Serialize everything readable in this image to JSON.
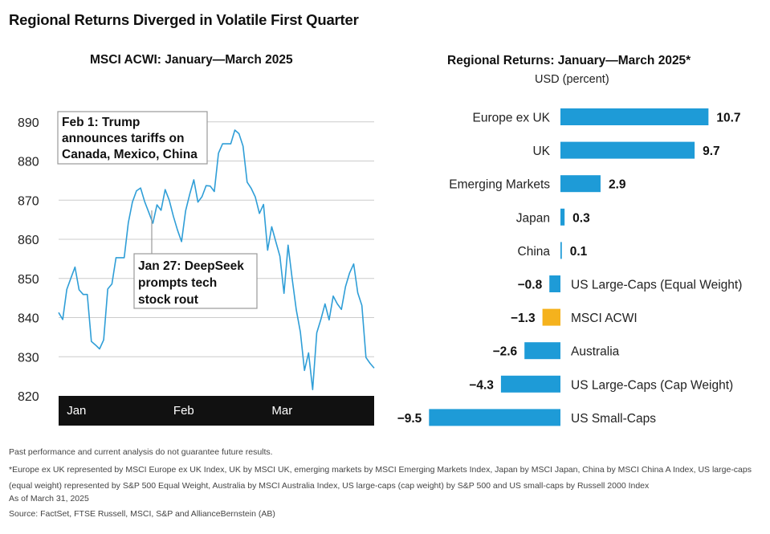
{
  "header": {
    "title": "Regional Returns Diverged in Volatile First Quarter",
    "left_subtitle": "MSCI ACWI: January—March 2025",
    "right_subtitle": "Regional Returns: January—March 2025*",
    "right_units": "USD (percent)"
  },
  "colors": {
    "line": "#2f9ed7",
    "bar": "#1e9bd7",
    "highlight_bar": "#f5b21d",
    "axis_band": "#111111",
    "grid": "#cccccc"
  },
  "chart_data": [
    {
      "type": "line",
      "title": "MSCI ACWI: January—March 2025",
      "yticks": [
        820,
        830,
        840,
        850,
        860,
        870,
        880,
        890
      ],
      "ylim": [
        820,
        892
      ],
      "xlim": [
        0,
        77
      ],
      "x_tick_labels": [
        {
          "label": "Jan",
          "x": 2
        },
        {
          "label": "Feb",
          "x": 28
        },
        {
          "label": "Mar",
          "x": 52
        }
      ],
      "grid": true,
      "x": [
        0,
        1,
        2,
        3,
        4,
        5,
        6,
        7,
        8,
        9,
        10,
        11,
        12,
        13,
        14,
        15,
        16,
        17,
        18,
        19,
        20,
        21,
        22,
        23,
        24,
        25,
        26,
        27,
        28,
        29,
        30,
        31,
        32,
        33,
        34,
        35,
        36,
        37,
        38,
        39,
        40,
        41,
        42,
        43,
        44,
        45,
        46,
        47,
        48,
        49,
        50,
        51,
        52,
        53,
        54,
        55,
        56,
        57,
        58,
        59,
        60,
        61,
        62,
        63,
        64,
        65,
        66,
        67,
        68,
        69,
        70,
        71,
        72,
        73,
        74,
        75,
        76,
        77
      ],
      "values": [
        841.3,
        839.5,
        847.2,
        850.1,
        852.9,
        847.1,
        845.9,
        845.9,
        833.9,
        833.0,
        832.0,
        834.3,
        847.3,
        848.6,
        855.3,
        855.3,
        855.3,
        864.2,
        869.5,
        872.4,
        873.1,
        869.6,
        866.9,
        864.1,
        868.8,
        867.4,
        872.7,
        870.0,
        865.9,
        862.4,
        859.4,
        867.3,
        871.5,
        875.2,
        869.5,
        870.9,
        873.7,
        873.6,
        872.2,
        882.0,
        884.4,
        884.4,
        884.4,
        887.9,
        887.0,
        883.8,
        874.6,
        873.0,
        870.8,
        866.6,
        868.9,
        857.2,
        863.2,
        859.4,
        855.7,
        846.2,
        858.5,
        849.9,
        842.0,
        836.3,
        826.5,
        831.0,
        821.6,
        836.1,
        839.5,
        843.5,
        839.4,
        845.5,
        843.5,
        842.1,
        847.9,
        851.4,
        853.7,
        846.3,
        843.1,
        829.8,
        828.3,
        827.1
      ],
      "annotations": [
        {
          "text": "Feb 1: Trump announces tariffs on Canada, Mexico, China",
          "lines": [
            "Feb 1: Trump",
            "announces tariffs on",
            "Canada, Mexico, China"
          ]
        },
        {
          "text": "Jan 27: DeepSeek prompts tech stock rout",
          "lines": [
            "Jan 27: DeepSeek",
            "prompts tech",
            "stock rout"
          ]
        }
      ]
    },
    {
      "type": "bar",
      "orientation": "horizontal",
      "title": "Regional Returns: January—March 2025*",
      "ylabel": "USD (percent)",
      "categories": [
        "Europe ex UK",
        "UK",
        "Emerging Markets",
        "Japan",
        "China",
        "US Large-Caps (Equal Weight)",
        "MSCI ACWI",
        "Australia",
        "US Large-Caps (Cap Weight)",
        "US Small-Caps"
      ],
      "values": [
        10.7,
        9.7,
        2.9,
        0.3,
        0.1,
        -0.8,
        -1.3,
        -2.6,
        -4.3,
        -9.5
      ],
      "value_labels": [
        "10.7",
        "9.7",
        "2.9",
        "0.3",
        "0.1",
        "−0.8",
        "−1.3",
        "−2.6",
        "−4.3",
        "−9.5"
      ],
      "highlight": "MSCI ACWI"
    }
  ],
  "footer": {
    "disclaimer": "Past performance and current analysis do not guarantee future results.",
    "note": "*Europe ex UK represented by MSCI Europe ex UK Index, UK by MSCI UK, emerging markets by MSCI Emerging Markets Index, Japan by MSCI Japan, China by MSCI China A Index, US large-caps (equal weight) represented by S&P 500 Equal Weight, Australia by MSCI Australia Index, US large-caps (cap weight) by S&P 500 and US small-caps by Russell 2000 Index",
    "as_of": "As of March 31, 2025",
    "source": "Source: FactSet, FTSE Russell, MSCI, S&P and AllianceBernstein (AB)"
  }
}
